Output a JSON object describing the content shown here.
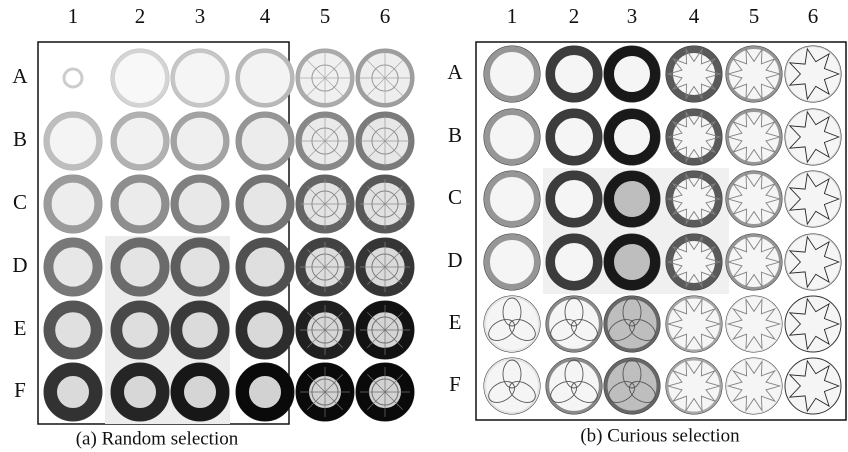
{
  "panels": [
    {
      "columns": [
        "1",
        "2",
        "3",
        "4",
        "5",
        "6"
      ],
      "rows": [
        "A",
        "B",
        "C",
        "D",
        "E",
        "F"
      ],
      "caption": "(a) Random selection"
    },
    {
      "columns": [
        "1",
        "2",
        "3",
        "4",
        "5",
        "6"
      ],
      "rows": [
        "A",
        "B",
        "C",
        "D",
        "E",
        "F"
      ],
      "caption": "(b) Curious selection"
    }
  ]
}
